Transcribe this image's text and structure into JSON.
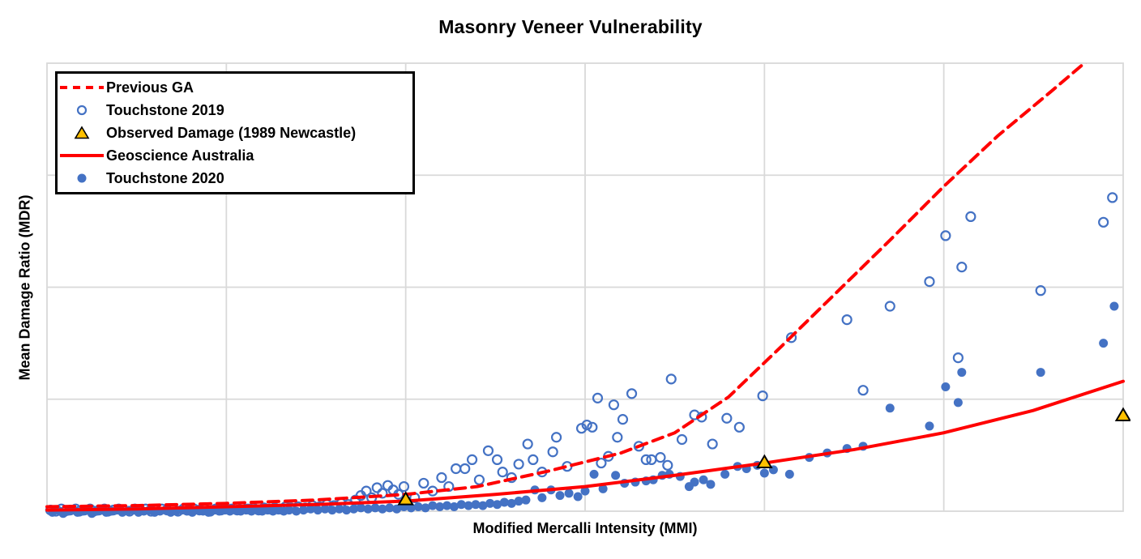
{
  "title": "Masonry Veneer Vulnerability",
  "colors": {
    "accent_red": "#FF0000",
    "point_blue": "#4472C4",
    "triangle_gold": "#FFC000",
    "grid_gray": "#D9D9D9",
    "text_black": "#000000",
    "background": "#FFFFFF"
  },
  "chart_data": {
    "type": "scatter",
    "title": "Masonry Veneer Vulnerability",
    "xlabel": "Modified Mercalli Intensity (MMI)",
    "ylabel": "Mean Damage Ratio (MDR)",
    "tick_labels_visible": false,
    "xlim": [
      0,
      6
    ],
    "ylim": [
      0,
      4
    ],
    "x_gridlines": [
      1,
      2,
      3,
      4,
      5
    ],
    "y_gridlines": [
      1,
      2,
      3
    ],
    "grid_on": true,
    "legend_position": "top-left",
    "series": [
      {
        "name": "Previous GA",
        "type": "line",
        "style": "dashed",
        "color": "#FF0000",
        "points": [
          [
            0,
            0.04
          ],
          [
            0.5,
            0.05
          ],
          [
            1,
            0.07
          ],
          [
            1.5,
            0.1
          ],
          [
            2,
            0.15
          ],
          [
            2.4,
            0.22
          ],
          [
            2.8,
            0.36
          ],
          [
            3.2,
            0.52
          ],
          [
            3.5,
            0.7
          ],
          [
            3.8,
            1.02
          ],
          [
            4.1,
            1.48
          ],
          [
            4.4,
            1.95
          ],
          [
            4.7,
            2.42
          ],
          [
            5.0,
            2.9
          ],
          [
            5.3,
            3.35
          ],
          [
            5.6,
            3.75
          ],
          [
            5.82,
            4.05
          ]
        ]
      },
      {
        "name": "Touchstone 2019",
        "type": "scatter",
        "marker": "open-circle",
        "color": "#4472C4",
        "points": [
          [
            0.02,
            0.01
          ],
          [
            0.05,
            0.0
          ],
          [
            0.08,
            0.02
          ],
          [
            0.1,
            0.0
          ],
          [
            0.13,
            0.01
          ],
          [
            0.16,
            0.02
          ],
          [
            0.18,
            0.0
          ],
          [
            0.21,
            0.01
          ],
          [
            0.24,
            0.02
          ],
          [
            0.26,
            0.0
          ],
          [
            0.29,
            0.01
          ],
          [
            0.32,
            0.02
          ],
          [
            0.34,
            0.0
          ],
          [
            0.37,
            0.01
          ],
          [
            0.4,
            0.02
          ],
          [
            0.43,
            0.01
          ],
          [
            0.46,
            0.0
          ],
          [
            0.49,
            0.02
          ],
          [
            0.52,
            0.01
          ],
          [
            0.55,
            0.02
          ],
          [
            0.58,
            0.0
          ],
          [
            0.61,
            0.01
          ],
          [
            0.64,
            0.02
          ],
          [
            0.67,
            0.01
          ],
          [
            0.7,
            0.02
          ],
          [
            0.73,
            0.0
          ],
          [
            0.76,
            0.02
          ],
          [
            0.79,
            0.01
          ],
          [
            0.82,
            0.02
          ],
          [
            0.85,
            0.01
          ],
          [
            0.88,
            0.02
          ],
          [
            0.91,
            0.0
          ],
          [
            0.94,
            0.02
          ],
          [
            0.97,
            0.01
          ],
          [
            1.0,
            0.02
          ],
          [
            1.03,
            0.02
          ],
          [
            1.06,
            0.01
          ],
          [
            1.09,
            0.03
          ],
          [
            1.12,
            0.02
          ],
          [
            1.15,
            0.03
          ],
          [
            1.18,
            0.01
          ],
          [
            1.21,
            0.03
          ],
          [
            1.24,
            0.02
          ],
          [
            1.27,
            0.03
          ],
          [
            1.3,
            0.02
          ],
          [
            1.33,
            0.04
          ],
          [
            1.36,
            0.03
          ],
          [
            1.4,
            0.04
          ],
          [
            1.44,
            0.03
          ],
          [
            1.48,
            0.05
          ],
          [
            1.52,
            0.04
          ],
          [
            1.56,
            0.06
          ],
          [
            1.6,
            0.05
          ],
          [
            1.64,
            0.07
          ],
          [
            1.68,
            0.06
          ],
          [
            1.72,
            0.1
          ],
          [
            1.75,
            0.14
          ],
          [
            1.78,
            0.18
          ],
          [
            1.81,
            0.12
          ],
          [
            1.84,
            0.21
          ],
          [
            1.87,
            0.16
          ],
          [
            1.9,
            0.23
          ],
          [
            1.93,
            0.19
          ],
          [
            1.96,
            0.15
          ],
          [
            1.99,
            0.22
          ],
          [
            2.05,
            0.12
          ],
          [
            2.1,
            0.25
          ],
          [
            2.15,
            0.18
          ],
          [
            2.2,
            0.3
          ],
          [
            2.24,
            0.22
          ],
          [
            2.28,
            0.38
          ],
          [
            2.33,
            0.38
          ],
          [
            2.37,
            0.46
          ],
          [
            2.41,
            0.28
          ],
          [
            2.46,
            0.54
          ],
          [
            2.51,
            0.46
          ],
          [
            2.54,
            0.35
          ],
          [
            2.59,
            0.3
          ],
          [
            2.63,
            0.42
          ],
          [
            2.68,
            0.6
          ],
          [
            2.71,
            0.46
          ],
          [
            2.76,
            0.35
          ],
          [
            2.82,
            0.53
          ],
          [
            2.84,
            0.66
          ],
          [
            2.9,
            0.4
          ],
          [
            2.98,
            0.74
          ],
          [
            3.01,
            0.77
          ],
          [
            3.04,
            0.75
          ],
          [
            3.07,
            1.01
          ],
          [
            3.09,
            0.43
          ],
          [
            3.13,
            0.49
          ],
          [
            3.16,
            0.95
          ],
          [
            3.18,
            0.66
          ],
          [
            3.21,
            0.82
          ],
          [
            3.26,
            1.05
          ],
          [
            3.3,
            0.58
          ],
          [
            3.34,
            0.46
          ],
          [
            3.37,
            0.46
          ],
          [
            3.42,
            0.48
          ],
          [
            3.46,
            0.41
          ],
          [
            3.48,
            1.18
          ],
          [
            3.54,
            0.64
          ],
          [
            3.61,
            0.86
          ],
          [
            3.65,
            0.84
          ],
          [
            3.71,
            0.6
          ],
          [
            3.79,
            0.83
          ],
          [
            3.86,
            0.75
          ],
          [
            3.99,
            1.03
          ],
          [
            4.15,
            1.55
          ],
          [
            4.46,
            1.71
          ],
          [
            4.55,
            1.08
          ],
          [
            4.7,
            1.83
          ],
          [
            4.92,
            2.05
          ],
          [
            5.01,
            2.46
          ],
          [
            5.08,
            1.37
          ],
          [
            5.1,
            2.18
          ],
          [
            5.15,
            2.63
          ],
          [
            5.54,
            1.97
          ],
          [
            5.89,
            2.58
          ],
          [
            5.94,
            2.8
          ]
        ]
      },
      {
        "name": "Observed Damage (1989 Newcastle)",
        "type": "scatter",
        "marker": "triangle",
        "color": "#FFC000",
        "stroke": "#000000",
        "points": [
          [
            2.0,
            0.1
          ],
          [
            4.0,
            0.43
          ],
          [
            6.0,
            0.85
          ]
        ]
      },
      {
        "name": "Geoscience Australia",
        "type": "line",
        "style": "solid",
        "color": "#FF0000",
        "points": [
          [
            0,
            0.01
          ],
          [
            0.5,
            0.02
          ],
          [
            1,
            0.04
          ],
          [
            1.5,
            0.06
          ],
          [
            2,
            0.09
          ],
          [
            2.5,
            0.15
          ],
          [
            3,
            0.22
          ],
          [
            3.5,
            0.32
          ],
          [
            4,
            0.43
          ],
          [
            4.5,
            0.55
          ],
          [
            5,
            0.7
          ],
          [
            5.5,
            0.9
          ],
          [
            6,
            1.16
          ]
        ]
      },
      {
        "name": "Touchstone 2020",
        "type": "scatter",
        "marker": "filled-circle",
        "color": "#4472C4",
        "points": [
          [
            0.03,
            -0.01
          ],
          [
            0.06,
            0.01
          ],
          [
            0.09,
            -0.02
          ],
          [
            0.12,
            0.0
          ],
          [
            0.15,
            0.01
          ],
          [
            0.17,
            -0.01
          ],
          [
            0.2,
            0.0
          ],
          [
            0.23,
            0.01
          ],
          [
            0.25,
            -0.02
          ],
          [
            0.28,
            0.0
          ],
          [
            0.31,
            0.01
          ],
          [
            0.33,
            -0.01
          ],
          [
            0.36,
            0.0
          ],
          [
            0.39,
            0.01
          ],
          [
            0.42,
            -0.01
          ],
          [
            0.45,
            0.0
          ],
          [
            0.48,
            0.01
          ],
          [
            0.51,
            -0.01
          ],
          [
            0.54,
            0.0
          ],
          [
            0.57,
            0.01
          ],
          [
            0.6,
            -0.01
          ],
          [
            0.63,
            0.0
          ],
          [
            0.66,
            0.01
          ],
          [
            0.69,
            -0.01
          ],
          [
            0.72,
            0.0
          ],
          [
            0.75,
            0.01
          ],
          [
            0.78,
            0.0
          ],
          [
            0.81,
            -0.01
          ],
          [
            0.84,
            0.01
          ],
          [
            0.87,
            0.0
          ],
          [
            0.9,
            -0.01
          ],
          [
            0.93,
            0.01
          ],
          [
            0.96,
            0.0
          ],
          [
            0.99,
            0.01
          ],
          [
            1.02,
            0.0
          ],
          [
            1.05,
            0.01
          ],
          [
            1.08,
            0.0
          ],
          [
            1.11,
            0.01
          ],
          [
            1.14,
            0.0
          ],
          [
            1.17,
            0.01
          ],
          [
            1.2,
            0.0
          ],
          [
            1.23,
            0.01
          ],
          [
            1.26,
            0.0
          ],
          [
            1.29,
            0.01
          ],
          [
            1.32,
            0.0
          ],
          [
            1.35,
            0.01
          ],
          [
            1.39,
            0.0
          ],
          [
            1.43,
            0.01
          ],
          [
            1.47,
            0.02
          ],
          [
            1.51,
            0.01
          ],
          [
            1.55,
            0.02
          ],
          [
            1.59,
            0.01
          ],
          [
            1.63,
            0.02
          ],
          [
            1.67,
            0.01
          ],
          [
            1.71,
            0.02
          ],
          [
            1.75,
            0.03
          ],
          [
            1.79,
            0.02
          ],
          [
            1.83,
            0.03
          ],
          [
            1.87,
            0.02
          ],
          [
            1.91,
            0.03
          ],
          [
            1.95,
            0.02
          ],
          [
            1.99,
            0.04
          ],
          [
            2.03,
            0.03
          ],
          [
            2.07,
            0.04
          ],
          [
            2.11,
            0.03
          ],
          [
            2.15,
            0.05
          ],
          [
            2.19,
            0.04
          ],
          [
            2.23,
            0.05
          ],
          [
            2.27,
            0.04
          ],
          [
            2.31,
            0.06
          ],
          [
            2.35,
            0.05
          ],
          [
            2.39,
            0.06
          ],
          [
            2.43,
            0.05
          ],
          [
            2.47,
            0.07
          ],
          [
            2.51,
            0.06
          ],
          [
            2.55,
            0.08
          ],
          [
            2.59,
            0.07
          ],
          [
            2.63,
            0.09
          ],
          [
            2.67,
            0.1
          ],
          [
            2.72,
            0.19
          ],
          [
            2.76,
            0.12
          ],
          [
            2.81,
            0.19
          ],
          [
            2.86,
            0.14
          ],
          [
            2.91,
            0.16
          ],
          [
            2.96,
            0.13
          ],
          [
            3.0,
            0.18
          ],
          [
            3.05,
            0.33
          ],
          [
            3.1,
            0.2
          ],
          [
            3.17,
            0.32
          ],
          [
            3.22,
            0.25
          ],
          [
            3.28,
            0.26
          ],
          [
            3.34,
            0.27
          ],
          [
            3.38,
            0.28
          ],
          [
            3.43,
            0.32
          ],
          [
            3.47,
            0.33
          ],
          [
            3.53,
            0.31
          ],
          [
            3.58,
            0.22
          ],
          [
            3.61,
            0.26
          ],
          [
            3.66,
            0.28
          ],
          [
            3.7,
            0.24
          ],
          [
            3.78,
            0.33
          ],
          [
            3.85,
            0.4
          ],
          [
            3.9,
            0.38
          ],
          [
            3.96,
            0.41
          ],
          [
            4.0,
            0.34
          ],
          [
            4.05,
            0.37
          ],
          [
            4.14,
            0.33
          ],
          [
            4.25,
            0.48
          ],
          [
            4.35,
            0.52
          ],
          [
            4.46,
            0.56
          ],
          [
            4.55,
            0.58
          ],
          [
            4.7,
            0.92
          ],
          [
            4.92,
            0.76
          ],
          [
            5.01,
            1.11
          ],
          [
            5.08,
            0.97
          ],
          [
            5.1,
            1.24
          ],
          [
            5.54,
            1.24
          ],
          [
            5.89,
            1.5
          ],
          [
            5.95,
            1.83
          ]
        ]
      }
    ]
  }
}
